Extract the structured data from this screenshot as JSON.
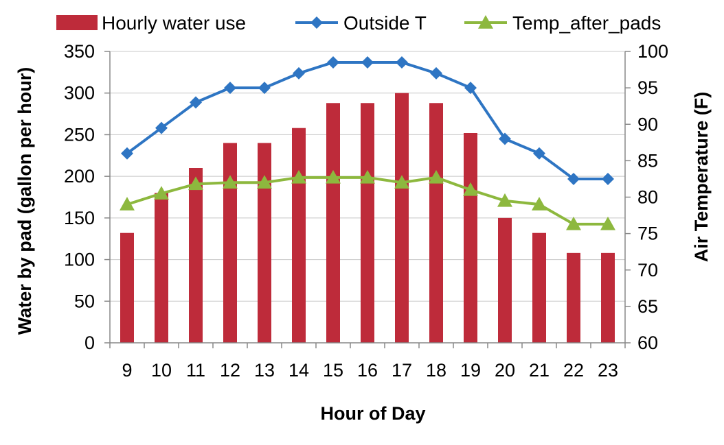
{
  "chart_data": {
    "type": "bar",
    "categories": [
      "9",
      "10",
      "11",
      "12",
      "13",
      "14",
      "15",
      "16",
      "17",
      "18",
      "19",
      "20",
      "21",
      "22",
      "23"
    ],
    "xlabel": "Hour of Day",
    "ylabel": "Water by pad (gallon per hour)",
    "y2label": "Air Temperature (F)",
    "ylim": [
      0,
      350
    ],
    "y2lim": [
      60,
      100
    ],
    "yticks": [
      "0",
      "50",
      "100",
      "150",
      "200",
      "250",
      "300",
      "350"
    ],
    "y2ticks": [
      "60",
      "65",
      "70",
      "75",
      "80",
      "85",
      "90",
      "95",
      "100"
    ],
    "grid": "horizontal",
    "legend_position": "top",
    "series": [
      {
        "name": "Hourly water use",
        "type": "bar",
        "axis": "left",
        "color": "#BE2B3A",
        "values": [
          132,
          180,
          210,
          240,
          240,
          258,
          288,
          288,
          300,
          288,
          252,
          150,
          132,
          108,
          108
        ]
      },
      {
        "name": "Outside T",
        "type": "line",
        "axis": "right",
        "marker": "diamond",
        "color": "#2E75C3",
        "values": [
          86,
          89.5,
          93,
          95,
          95,
          97,
          98.5,
          98.5,
          98.5,
          97,
          95,
          88,
          86,
          82.5,
          82.5
        ]
      },
      {
        "name": "Temp_after_pads",
        "type": "line",
        "axis": "right",
        "marker": "triangle",
        "color": "#8DB83E",
        "values": [
          79,
          80.5,
          81.8,
          82,
          82,
          82.7,
          82.7,
          82.7,
          82,
          82.7,
          81,
          79.5,
          79,
          76.3,
          76.3
        ]
      }
    ]
  }
}
